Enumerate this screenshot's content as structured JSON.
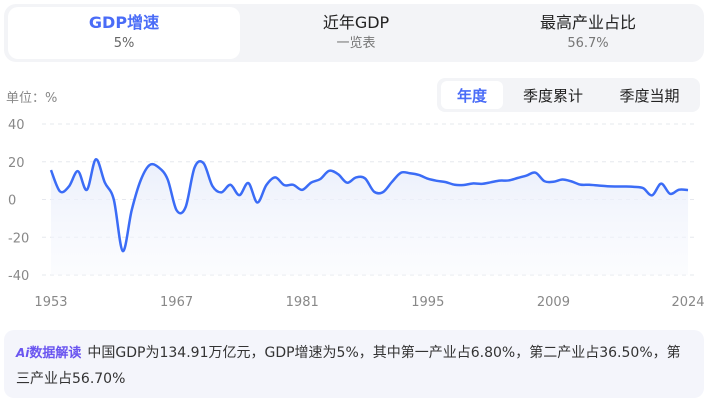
{
  "tabs": [
    {
      "title": "GDP增速",
      "sub": "5%",
      "active": true
    },
    {
      "title": "近年GDP",
      "sub": "一览表",
      "active": false
    },
    {
      "title": "最高产业占比",
      "sub": "56.7%",
      "active": false
    }
  ],
  "unit_label": "单位：%",
  "periods": [
    {
      "label": "年度",
      "active": true
    },
    {
      "label": "季度累计",
      "active": false
    },
    {
      "label": "季度当期",
      "active": false
    }
  ],
  "chart_data": {
    "type": "line",
    "title": "",
    "xlabel": "",
    "ylabel": "%",
    "ylim": [
      -40,
      40
    ],
    "yticks": [
      40,
      20,
      0,
      -20,
      -40
    ],
    "xticks": [
      1953,
      1967,
      1981,
      1995,
      2009,
      2024
    ],
    "grid": true,
    "color": "#3b6cf6",
    "series": [
      {
        "name": "",
        "x": [
          1953,
          1954,
          1955,
          1956,
          1957,
          1958,
          1959,
          1960,
          1961,
          1962,
          1963,
          1964,
          1965,
          1966,
          1967,
          1968,
          1969,
          1970,
          1971,
          1972,
          1973,
          1974,
          1975,
          1976,
          1977,
          1978,
          1979,
          1980,
          1981,
          1982,
          1983,
          1984,
          1985,
          1986,
          1987,
          1988,
          1989,
          1990,
          1991,
          1992,
          1993,
          1994,
          1995,
          1996,
          1997,
          1998,
          1999,
          2000,
          2001,
          2002,
          2003,
          2004,
          2005,
          2006,
          2007,
          2008,
          2009,
          2010,
          2011,
          2012,
          2013,
          2014,
          2015,
          2016,
          2017,
          2018,
          2019,
          2020,
          2021,
          2022,
          2023,
          2024
        ],
        "values": [
          15.6,
          4.3,
          6.9,
          15.0,
          5.1,
          21.3,
          9.0,
          0.0,
          -27.3,
          -5.6,
          10.2,
          18.3,
          17.0,
          10.7,
          -5.7,
          -4.1,
          16.9,
          19.3,
          7.1,
          3.8,
          7.8,
          2.3,
          8.7,
          -1.6,
          7.6,
          11.7,
          7.6,
          7.8,
          5.1,
          9.0,
          10.8,
          15.2,
          13.4,
          8.9,
          11.7,
          11.2,
          4.2,
          3.9,
          9.3,
          14.2,
          13.9,
          13.0,
          11.0,
          9.9,
          9.2,
          7.8,
          7.7,
          8.5,
          8.3,
          9.1,
          10.0,
          10.1,
          11.4,
          12.7,
          14.2,
          9.7,
          9.4,
          10.6,
          9.6,
          7.9,
          7.8,
          7.4,
          7.0,
          6.9,
          6.9,
          6.7,
          6.0,
          2.2,
          8.4,
          3.0,
          5.2,
          5.0
        ]
      }
    ]
  },
  "interpretation": {
    "badge": "数据解读",
    "badge_icon": "Ai",
    "text": "中国GDP为134.91万亿元，GDP增速为5%，其中第一产业占6.80%，第二产业占36.50%，第三产业占56.70%"
  }
}
